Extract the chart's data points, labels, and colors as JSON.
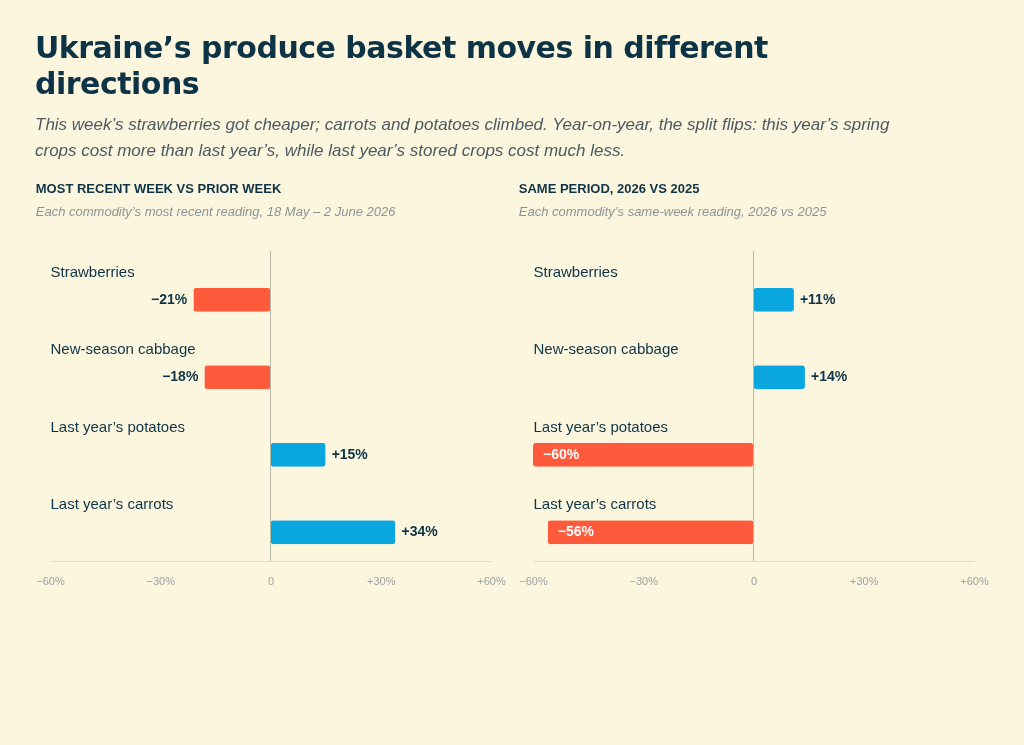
{
  "chart_data": [
    {
      "type": "other",
      "title": "Ukraine’s produce basket moves in different directions",
      "subtitle": "This week’s strawberries got cheaper; carrots and potatoes climbed. Year-on-year, the split flips: this year’s spring crops cost more than last year’s, while last year’s stored crops cost much less."
    },
    {
      "type": "bar",
      "orientation": "horizontal",
      "title": "MOST RECENT WEEK VS PRIOR WEEK",
      "subtitle": "Each commodity’s most recent reading, 18 May – 2 June 2026",
      "categories": [
        "Strawberries",
        "New-season cabbage",
        "Last year’s potatoes",
        "Last year’s carrots"
      ],
      "values": [
        -21,
        -18,
        15,
        34
      ],
      "colors": [
        "#ff5a3c",
        "#ff5a3c",
        "#0aa6e0",
        "#0aa6e0"
      ],
      "value_labels": [
        "−21%",
        "−18%",
        "+15%",
        "+34%"
      ],
      "xlim": [
        -60,
        60
      ],
      "xticks": [
        {
          "value": -60,
          "label": "−60%"
        },
        {
          "value": -30,
          "label": "−30%"
        },
        0,
        {
          "value": 30,
          "label": "+30%"
        },
        {
          "value": 60,
          "label": "+60%"
        }
      ],
      "ref_lines": [
        {
          "axis": "x",
          "value": 0,
          "label": null
        }
      ]
    },
    {
      "type": "bar",
      "orientation": "horizontal",
      "title": "SAME PERIOD, 2026 VS 2025",
      "subtitle": "Each commodity’s same-week reading, 2026 vs 2025",
      "categories": [
        "Strawberries",
        "New-season cabbage",
        "Last year’s potatoes",
        "Last year’s carrots"
      ],
      "values": [
        11,
        14,
        -60,
        -56
      ],
      "colors": [
        "#0aa6e0",
        "#0aa6e0",
        "#ff5a3c",
        "#ff5a3c"
      ],
      "value_labels": [
        "+11%",
        "+14%",
        "−60%",
        "−56%"
      ],
      "xlim": [
        -60,
        60
      ],
      "xticks": [
        {
          "value": -60,
          "label": "−60%"
        },
        {
          "value": -30,
          "label": "−30%"
        },
        0,
        {
          "value": 30,
          "label": "+30%"
        },
        {
          "value": 60,
          "label": "+60%"
        }
      ],
      "ref_lines": [
        {
          "axis": "x",
          "value": 0,
          "label": null
        }
      ]
    }
  ]
}
